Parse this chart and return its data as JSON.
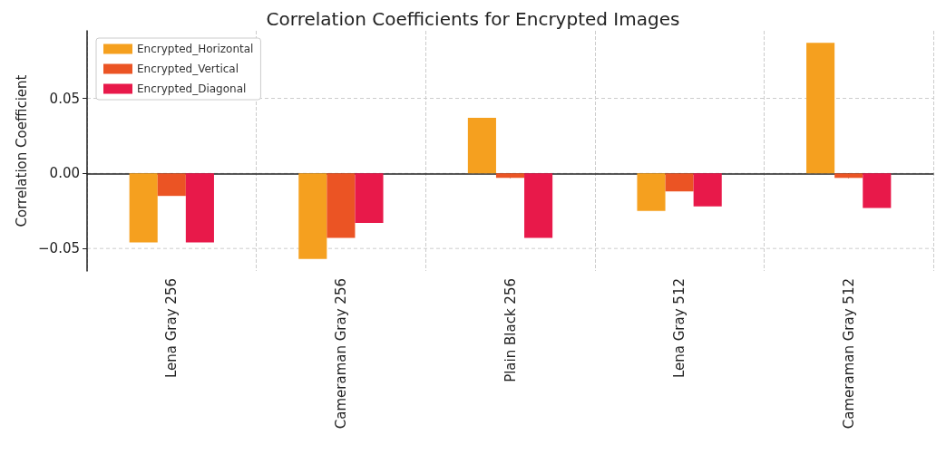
{
  "chart_data": {
    "type": "bar",
    "title": "Correlation Coefficients for Encrypted Images",
    "ylabel": "Correlation Coefficient",
    "categories": [
      "Lena Gray 256",
      "Cameraman Gray 256",
      "Plain Black 256",
      "Lena Gray 512",
      "Cameraman Gray 512"
    ],
    "series": [
      {
        "name": "Encrypted_Horizontal",
        "color": "#f5a01f",
        "values": [
          -0.046,
          -0.057,
          0.037,
          -0.025,
          0.087
        ]
      },
      {
        "name": "Encrypted_Vertical",
        "color": "#eb5424",
        "values": [
          -0.015,
          -0.043,
          -0.003,
          -0.012,
          -0.003
        ]
      },
      {
        "name": "Encrypted_Diagonal",
        "color": "#e8194a",
        "values": [
          -0.046,
          -0.033,
          -0.043,
          -0.022,
          -0.023
        ]
      }
    ],
    "ylim": [
      -0.065,
      0.095
    ],
    "yticks": [
      {
        "value": -0.05,
        "label": "−0.05"
      },
      {
        "value": 0,
        "label": "0.00"
      },
      {
        "value": 0.05,
        "label": "0.05"
      }
    ],
    "grid": true,
    "legend": "top left"
  }
}
